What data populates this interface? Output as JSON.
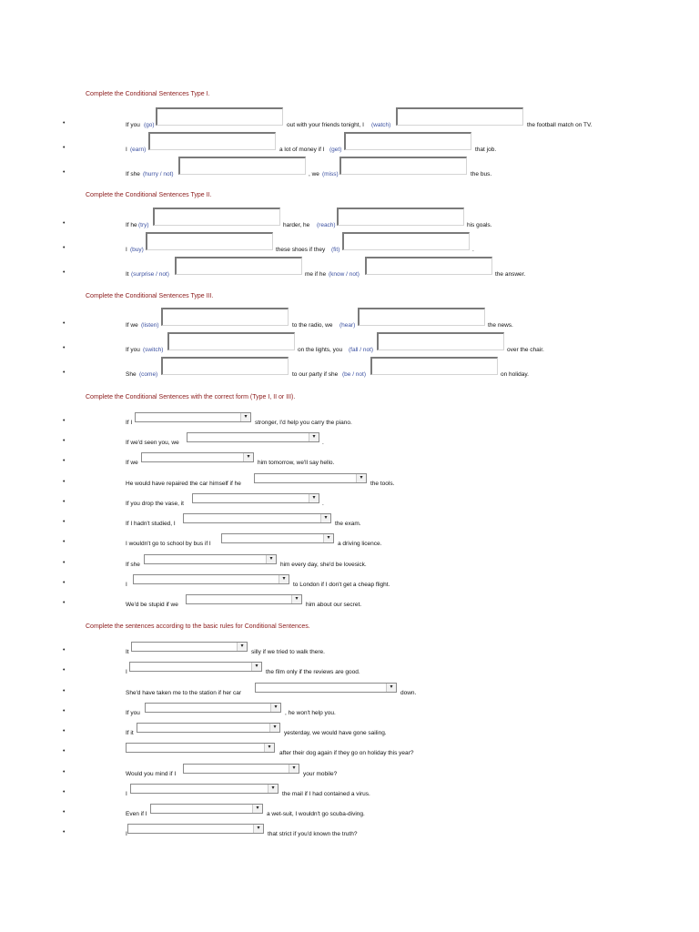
{
  "sections": [
    {
      "title": "Complete the Conditional Sentences Type I.",
      "rows": [
        {
          "p0": "If you",
          "h1": "(go)",
          "p2": "out with your friends tonight, I",
          "h2": "(watch)",
          "p3": "the football match on TV."
        },
        {
          "p0": "I",
          "h1": "(earn)",
          "p2": "a lot of money if I",
          "h2": "(get)",
          "p3": "that job."
        },
        {
          "p0": "If she",
          "h1": "(hurry / not)",
          "p2": ", we",
          "h2": "(miss)",
          "p3": "the bus."
        }
      ]
    },
    {
      "title": "Complete the Conditional Sentences Type II.",
      "rows": [
        {
          "p0": "If he",
          "h1": "(try)",
          "p2": "harder, he",
          "h2": "(reach)",
          "p3": "his goals."
        },
        {
          "p0": "I",
          "h1": "(buy)",
          "p2": "these shoes if they",
          "h2": "(fit)",
          "p3": "."
        },
        {
          "p0": "It",
          "h1": "(surprise / not)",
          "p2": "me if he",
          "h2": "(know / not)",
          "p3": "the answer."
        }
      ]
    },
    {
      "title": "Complete the Conditional Sentences Type III.",
      "rows": [
        {
          "p0": "If we",
          "h1": "(listen)",
          "p2": "to the radio, we",
          "h2": "(hear)",
          "p3": "the news."
        },
        {
          "p0": "If you",
          "h1": "(switch)",
          "p2": "on the lights, you",
          "h2": "(fall / not)",
          "p3": "over the chair."
        },
        {
          "p0": "She",
          "h1": "(come)",
          "p2": "to our party if she",
          "h2": "(be / not)",
          "p3": "on holiday."
        }
      ]
    },
    {
      "title": "Complete the Conditional Sentences with the correct form (Type I, II or III).",
      "rows": [
        {
          "before": "If I",
          "after": "stronger, I'd help you carry the piano."
        },
        {
          "before": "If we'd seen you, we",
          "after": "."
        },
        {
          "before": "If we",
          "after": "him tomorrow, we'll say hello."
        },
        {
          "before": "He would have repaired the car himself if he",
          "after": "the tools."
        },
        {
          "before": "If you drop the vase, it",
          "after": "."
        },
        {
          "before": "If I hadn't studied, I",
          "after": "the exam."
        },
        {
          "before": "I wouldn't go to school by bus if I",
          "after": "a driving licence."
        },
        {
          "before": "If she",
          "after": "him every day, she'd be lovesick."
        },
        {
          "before": "I",
          "after": "to London if I don't get a cheap flight."
        },
        {
          "before": "We'd be stupid if we",
          "after": "him about our secret."
        }
      ]
    },
    {
      "title": "Complete the sentences according to the basic rules for Conditional Sentences.",
      "rows": [
        {
          "before": "It",
          "after": "silly if we tried to walk there."
        },
        {
          "before": "I",
          "after": "the film only if the reviews are good."
        },
        {
          "before": "She'd have taken me to the station if her car",
          "after": "down."
        },
        {
          "before": "If you",
          "after": ", he won't help you."
        },
        {
          "before": "If it",
          "after": "yesterday, we would have gone sailing."
        },
        {
          "before": "",
          "after": "after their dog again if they go on holiday this year?"
        },
        {
          "before": "Would you mind if I",
          "after": "your mobile?"
        },
        {
          "before": "I",
          "after": "the mail if I had contained a virus."
        },
        {
          "before": "Even if I",
          "after": "a wet-suit, I wouldn't go scuba-diving."
        },
        {
          "before": "I",
          "after": "that strict if you'd known the truth?"
        }
      ]
    }
  ],
  "icons": {
    "bullet": "•",
    "dropdown_arrow": "▾"
  }
}
